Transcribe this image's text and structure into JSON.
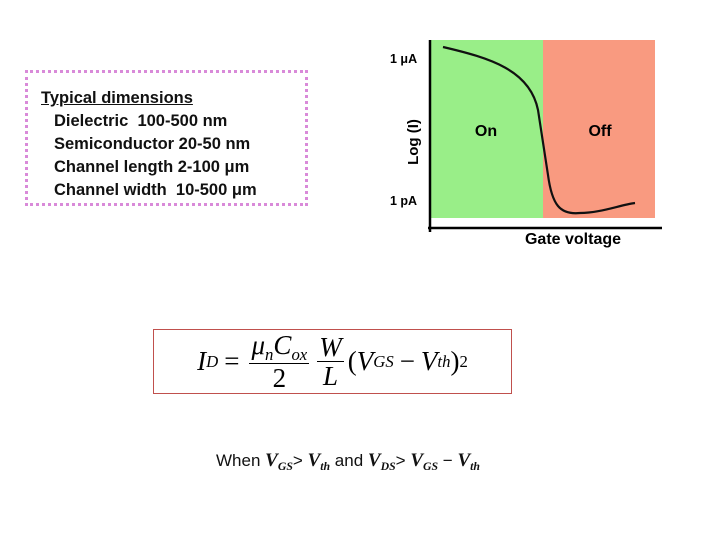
{
  "dimensions": {
    "title": "Typical dimensions",
    "lines": [
      "Dielectric  100-500 nm",
      "Semiconductor 20-50 nm",
      "Channel length 2-100 μm",
      "Channel width  10-500 μm"
    ]
  },
  "plot": {
    "y_label": "Log (I)",
    "x_label": "Gate voltage",
    "y_high": "1 μA",
    "y_low": "1 pA",
    "regions": [
      "On",
      "Off"
    ]
  },
  "equation": {
    "lhs": {
      "base": "I",
      "sub": "D"
    },
    "equals": "=",
    "mu": {
      "base": "μ",
      "sub": "n"
    },
    "cap": {
      "base": "C",
      "sub": "ox"
    },
    "denominator": "2",
    "ratio_num": "W",
    "ratio_den": "L",
    "open": "(",
    "term1": {
      "base": "V",
      "sub": "GS"
    },
    "minus": "−",
    "term2": {
      "base": "V",
      "sub": "th"
    },
    "close": ")",
    "exponent": "2"
  },
  "condition": {
    "when": "When",
    "v1": {
      "base": "V",
      "sub": "GS"
    },
    "gt1": ">",
    "v2": {
      "base": "V",
      "sub": "th"
    },
    "and": "and",
    "v3": {
      "base": "V",
      "sub": "DS"
    },
    "gt2": ">",
    "v4": {
      "base": "V",
      "sub": "GS"
    },
    "minus": "−",
    "v5": {
      "base": "V",
      "sub": "th"
    }
  }
}
